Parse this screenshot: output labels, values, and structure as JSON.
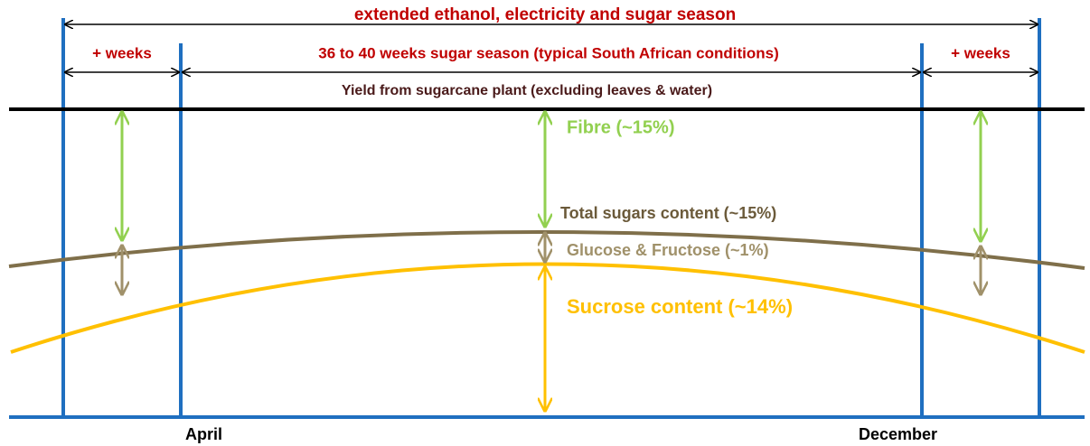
{
  "season": {
    "title": "extended ethanol, electricity  and sugar season",
    "left_extension": "+ weeks",
    "main": "36 to 40 weeks sugar season (typical South African conditions)",
    "right_extension": "+ weeks"
  },
  "yield_label": "Yield from sugarcane plant (excluding leaves & water)",
  "components": {
    "fibre": "Fibre (~15%)",
    "total_sugars": "Total sugars content (~15%)",
    "glucose_fructose": "Glucose & Fructose (~1%)",
    "sucrose": "Sucrose content (~14%)"
  },
  "months": {
    "start": "April",
    "end": "December"
  }
}
